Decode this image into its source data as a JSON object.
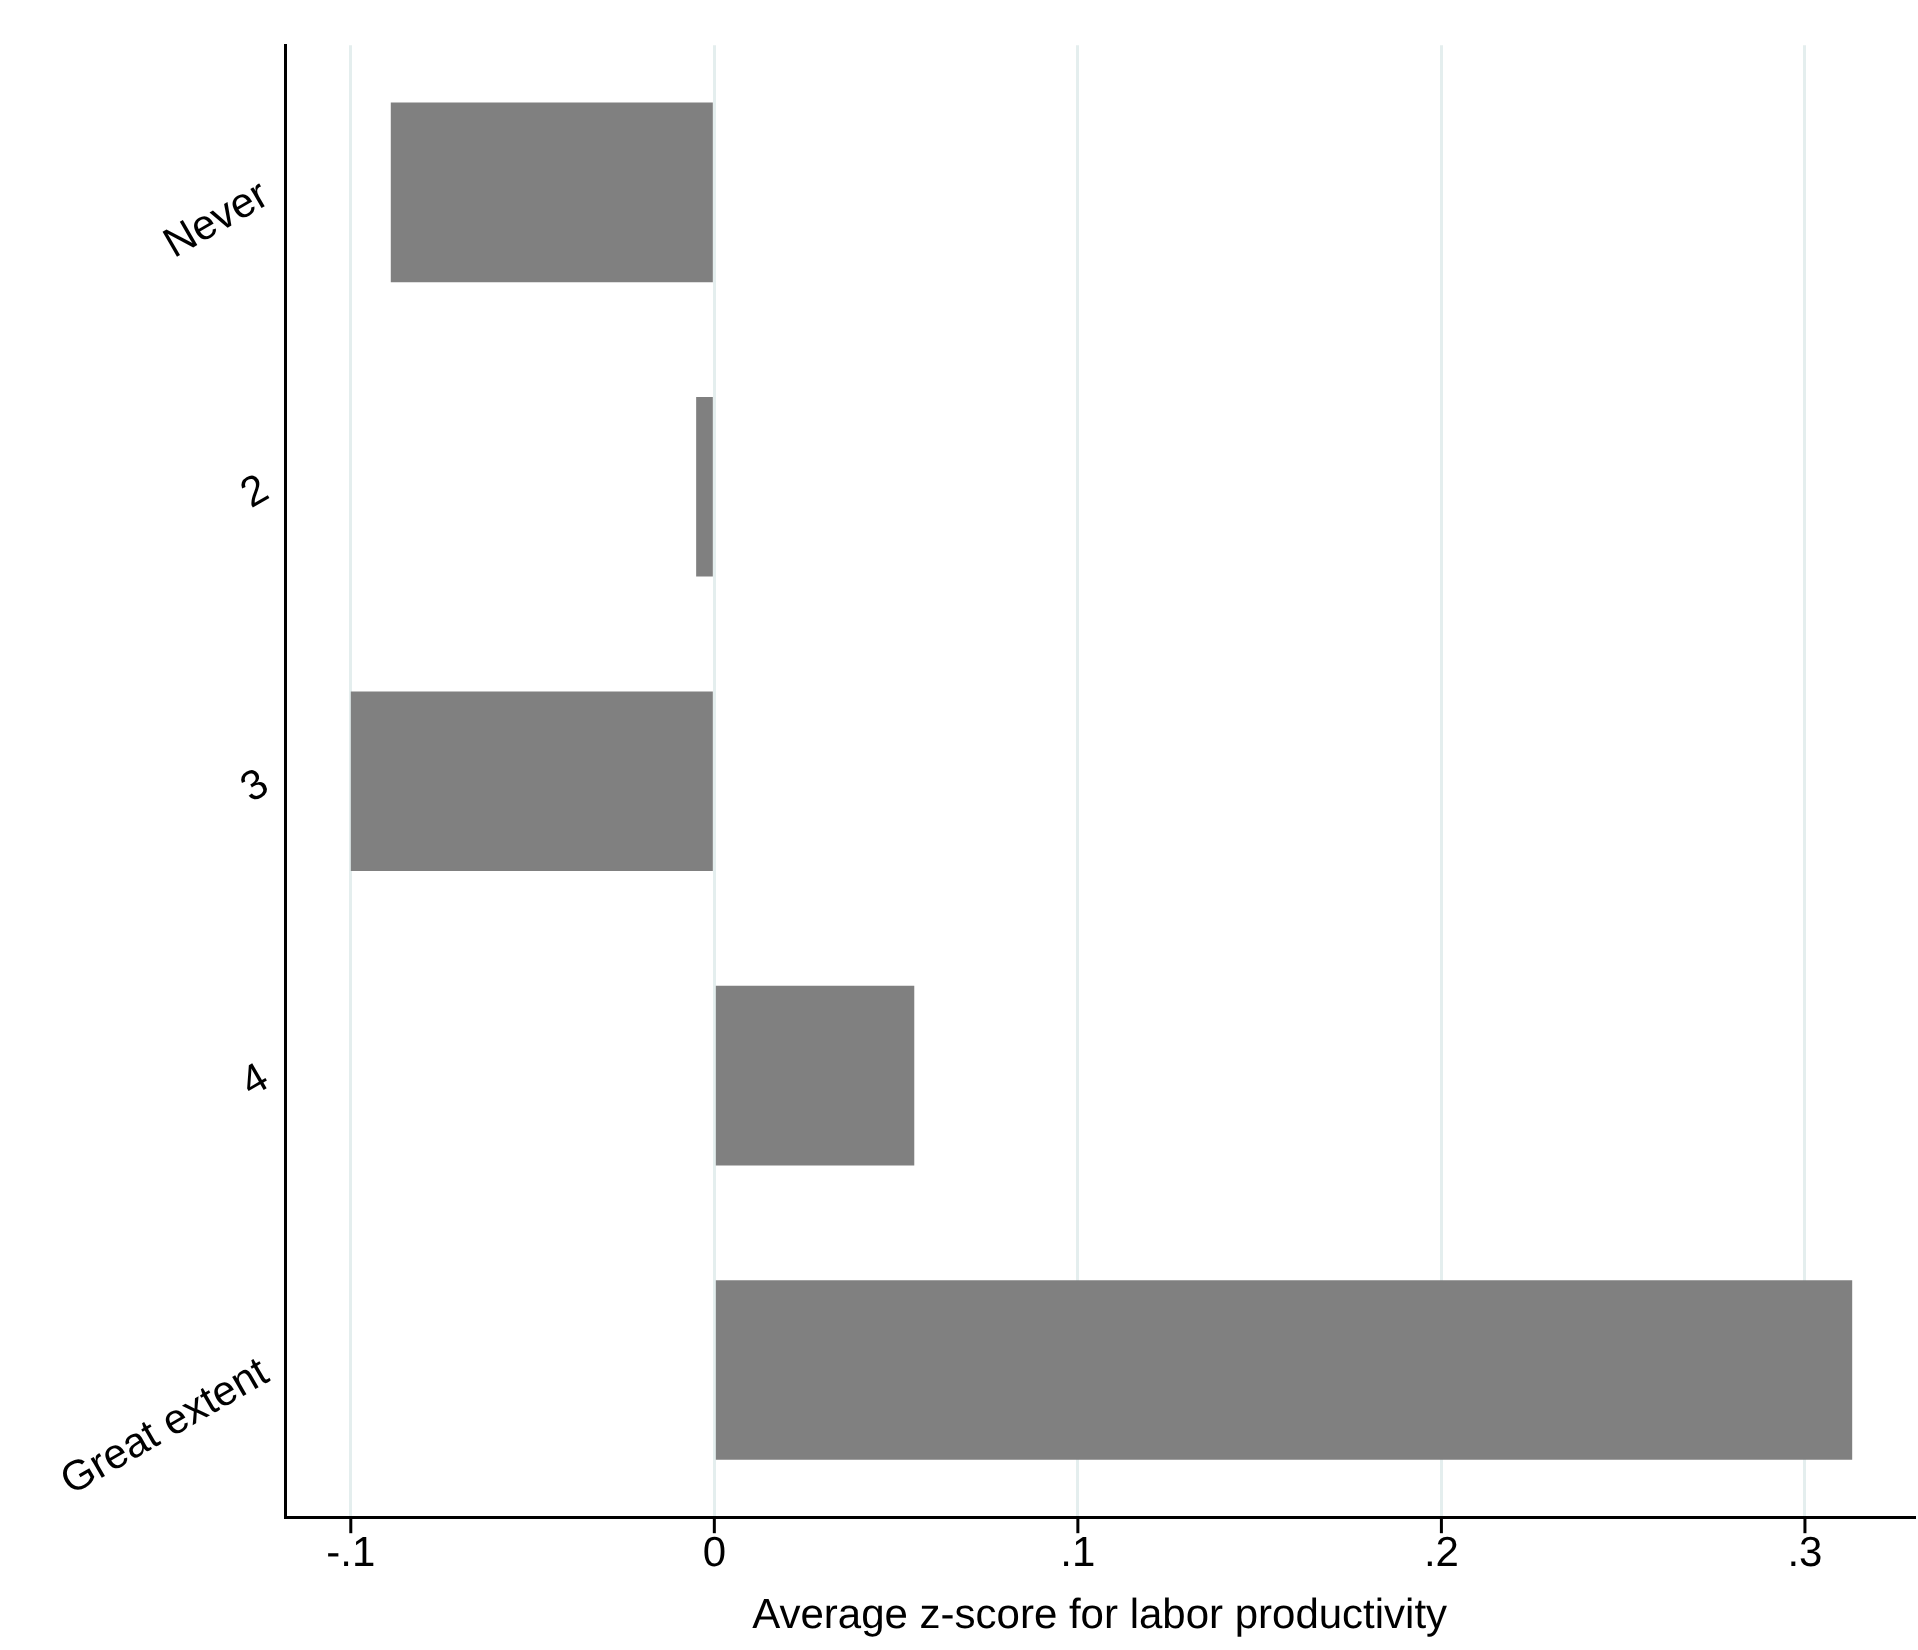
{
  "chart_data": {
    "type": "bar",
    "orientation": "horizontal",
    "xlabel": "Average z-score for labor productivity",
    "categories": [
      "Never",
      "2",
      "3",
      "4",
      "Great extent"
    ],
    "values": [
      -0.089,
      -0.005,
      -0.1,
      0.055,
      0.313
    ],
    "color": "#808080",
    "xlim": [
      -0.118,
      0.33
    ],
    "xticks": [
      {
        "value": -0.1,
        "label": "-.1"
      },
      0,
      {
        "value": 0.1,
        "label": ".1"
      },
      {
        "value": 0.2,
        "label": ".2"
      },
      {
        "value": 0.3,
        "label": ".3"
      }
    ],
    "grid": "x",
    "legend": false
  }
}
